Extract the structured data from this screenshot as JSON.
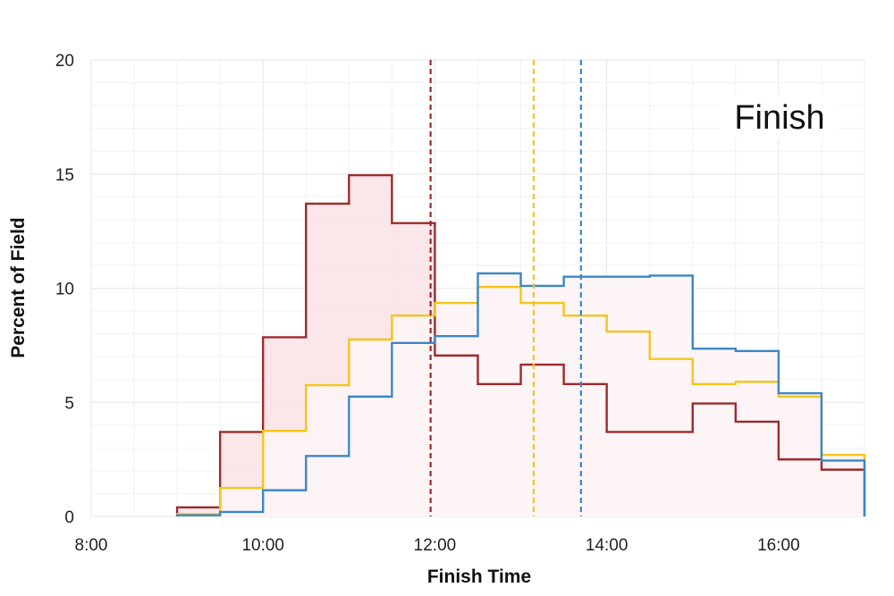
{
  "chart_data": {
    "type": "line",
    "title": "",
    "annotation": "Finish",
    "xlabel": "Finish Time",
    "ylabel": "Percent of Field",
    "xlim": [
      8,
      17
    ],
    "ylim": [
      0,
      20
    ],
    "x_ticks": [
      8,
      10,
      12,
      14,
      16
    ],
    "x_tick_labels": [
      "8:00",
      "10:00",
      "12:00",
      "14:00",
      "16:00"
    ],
    "y_ticks": [
      0,
      5,
      10,
      15,
      20
    ],
    "y_tick_labels": [
      "0",
      "5",
      "10",
      "15",
      "20"
    ],
    "grid": true,
    "bin_edges": [
      9,
      9.5,
      10,
      10.5,
      11,
      11.5,
      12,
      12.5,
      13,
      13.5,
      14,
      14.5,
      15,
      15.5,
      16,
      16.5,
      17
    ],
    "series": [
      {
        "color": "#9e2a2b",
        "fill": "#fbe3e8",
        "values": [
          0.4,
          3.7,
          7.85,
          13.7,
          14.95,
          12.85,
          7.05,
          5.8,
          6.65,
          5.8,
          3.7,
          3.7,
          4.95,
          4.15,
          2.5,
          2.05
        ],
        "mean_line": 11.95
      },
      {
        "color": "#f5c518",
        "fill": "#fdf4f6",
        "values": [
          0.1,
          1.25,
          3.75,
          5.75,
          7.75,
          8.8,
          9.35,
          10.05,
          9.35,
          8.8,
          8.1,
          6.9,
          5.8,
          5.9,
          5.25,
          2.7
        ],
        "mean_line": 13.15
      },
      {
        "color": "#3a87c8",
        "fill": "#fdf4f6",
        "values": [
          0.05,
          0.2,
          1.15,
          2.65,
          5.25,
          7.6,
          7.9,
          10.65,
          10.1,
          10.5,
          10.5,
          10.55,
          7.35,
          7.25,
          5.4,
          2.45
        ],
        "mean_line": 13.7
      }
    ]
  }
}
